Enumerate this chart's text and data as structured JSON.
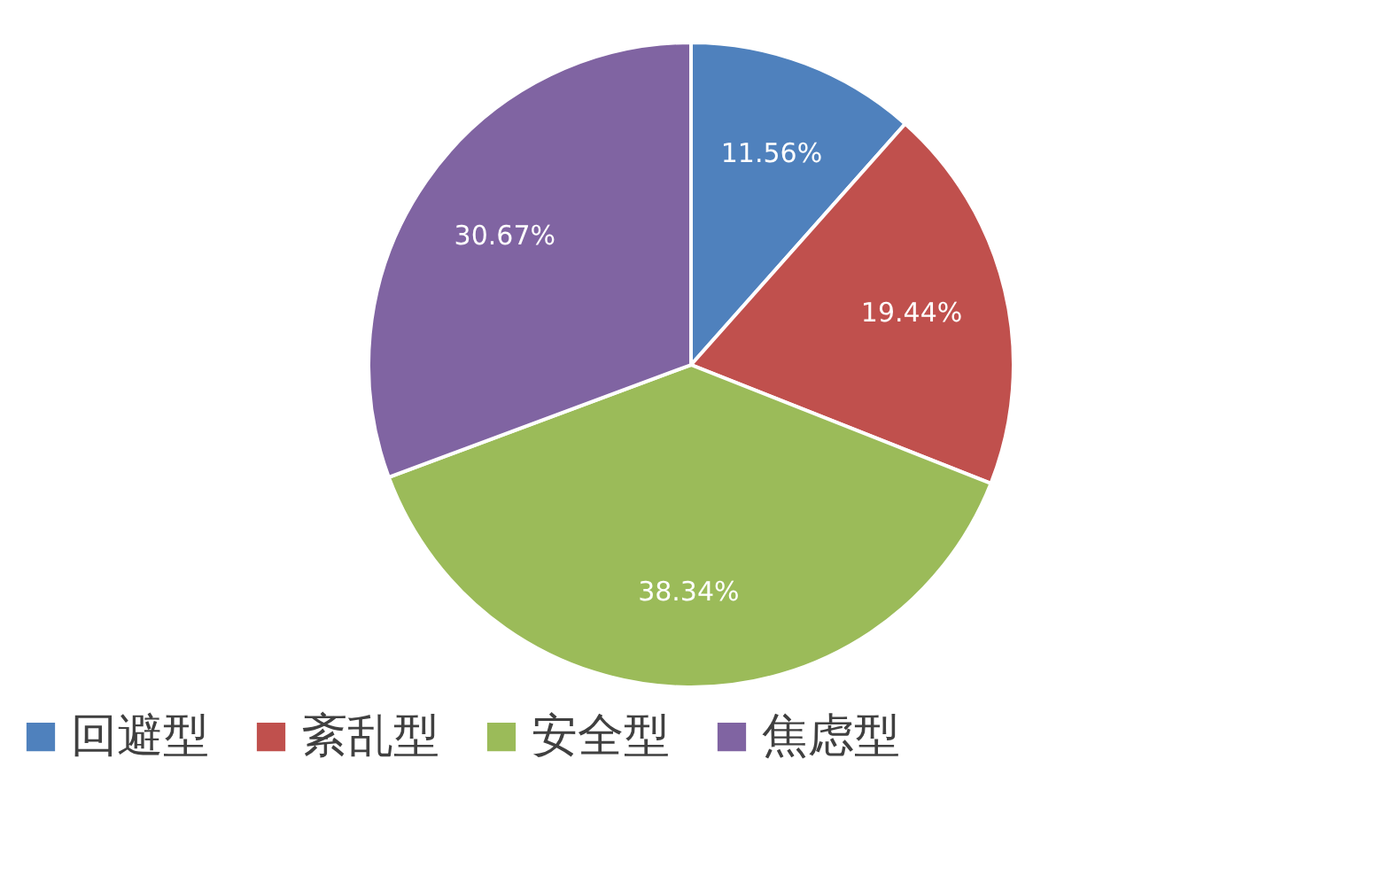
{
  "chart_data": {
    "type": "pie",
    "categories": [
      "回避型",
      "紊乱型",
      "安全型",
      "焦虑型"
    ],
    "values": [
      11.56,
      19.44,
      38.34,
      30.67
    ],
    "value_labels": [
      "11.56%",
      "19.44%",
      "38.34%",
      "30.67%"
    ],
    "colors": [
      "#4f81bd",
      "#c0504d",
      "#9bbb59",
      "#8064a2"
    ],
    "legend": "bottom"
  }
}
